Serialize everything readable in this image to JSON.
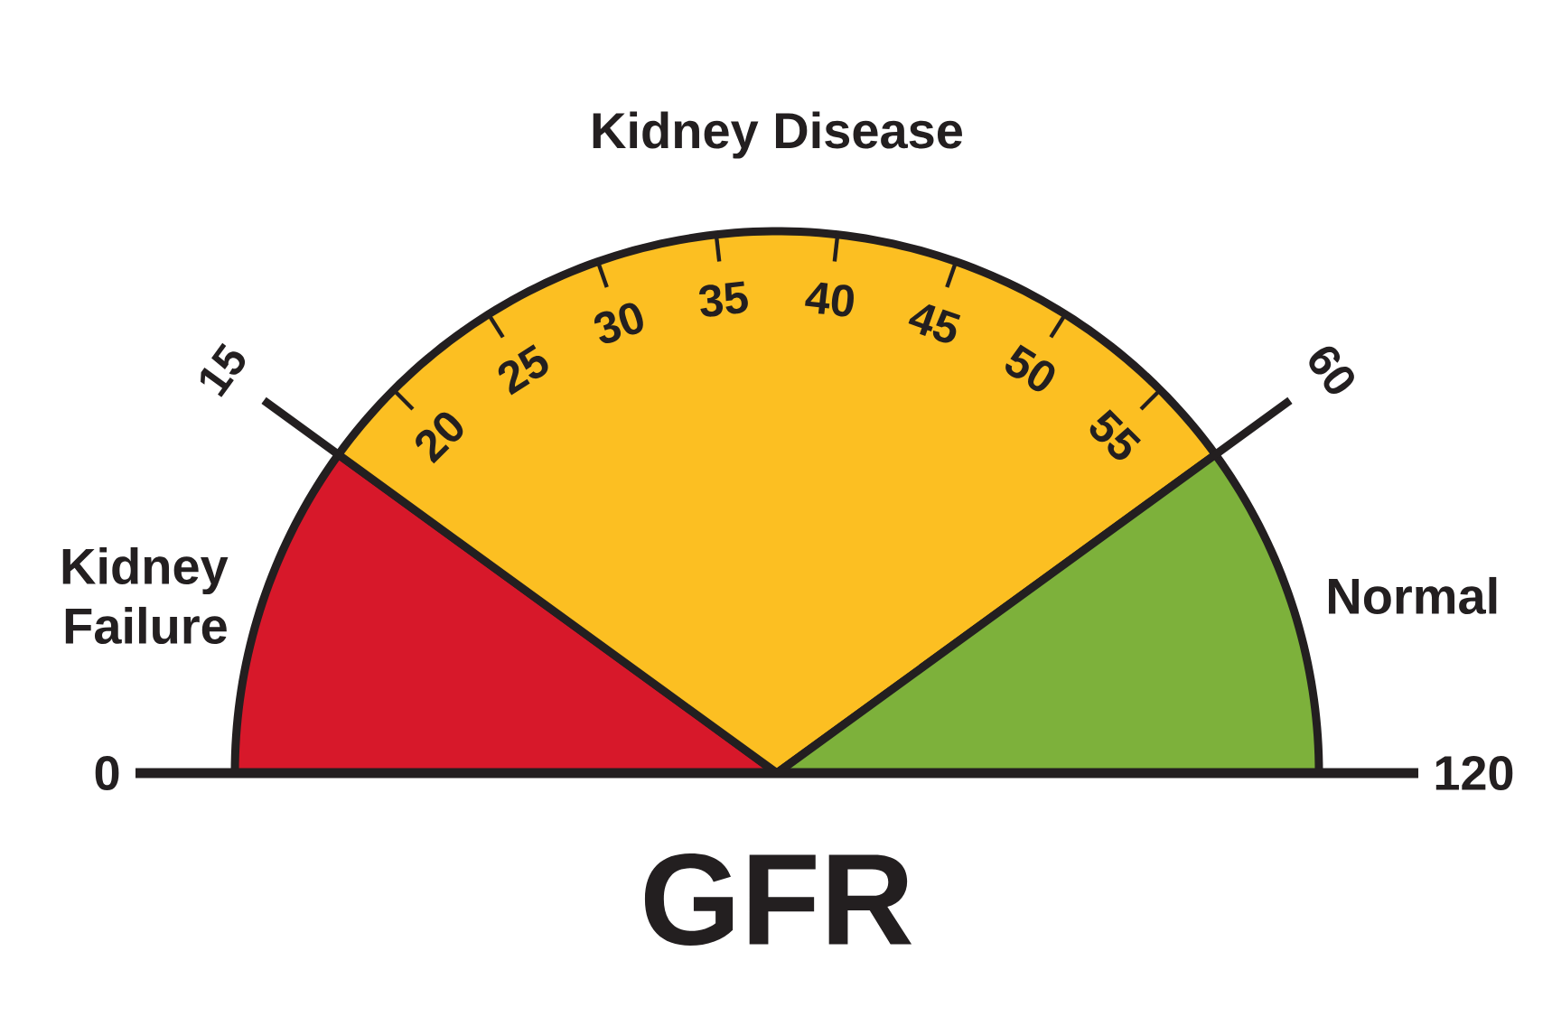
{
  "chart_data": {
    "type": "pie",
    "xlabel": "GFR",
    "categories": [
      "Kidney Failure",
      "Kidney Disease",
      "Normal"
    ],
    "values": [
      20,
      60,
      20
    ],
    "colors": [
      "#d7182a",
      "#fcbf22",
      "#7db13b"
    ],
    "annotations": [
      "0",
      "15",
      "20",
      "25",
      "30",
      "35",
      "40",
      "45",
      "50",
      "55",
      "60",
      "120"
    ]
  }
}
